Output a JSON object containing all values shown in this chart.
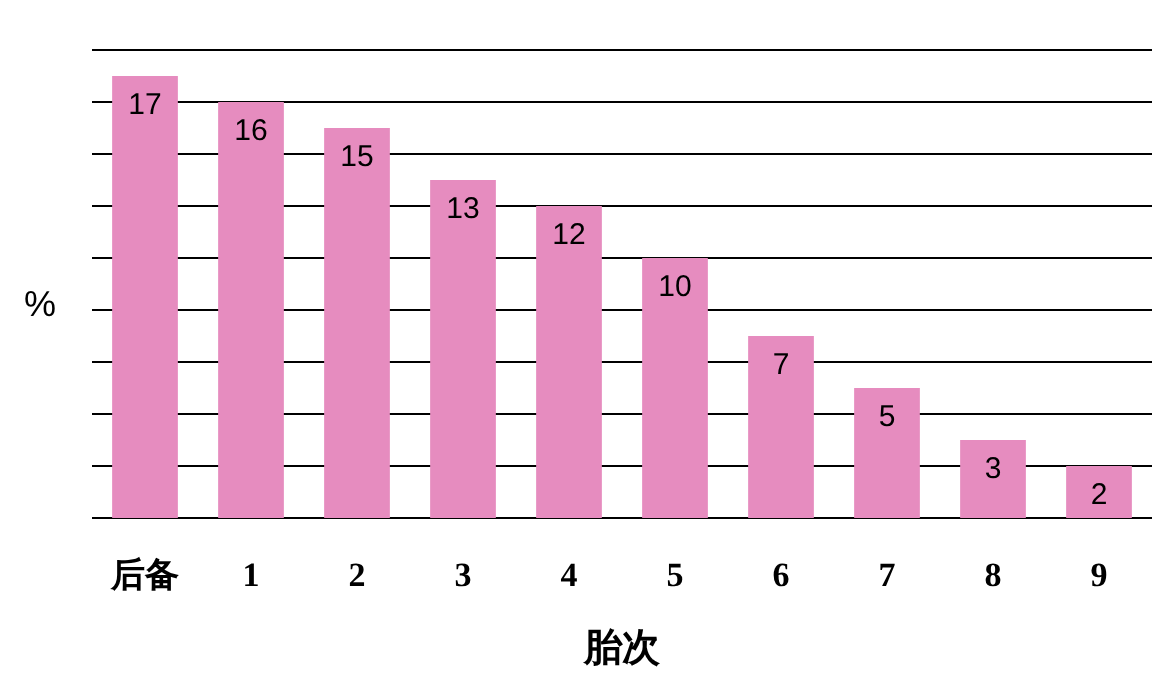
{
  "chart_data": {
    "type": "bar",
    "xlabel": "胎次",
    "ylabel": "%",
    "categories": [
      "后备",
      "1",
      "2",
      "3",
      "4",
      "5",
      "6",
      "7",
      "8",
      "9"
    ],
    "values": [
      17,
      16,
      15,
      13,
      12,
      10,
      7,
      5,
      3,
      2
    ],
    "color": "#e68cbf",
    "ylim": [
      0,
      18
    ],
    "yticks": [
      {
        "value": 0,
        "label": null
      },
      {
        "value": 2,
        "label": null
      },
      {
        "value": 4,
        "label": null
      },
      {
        "value": 6,
        "label": null
      },
      {
        "value": 8,
        "label": null
      },
      {
        "value": 10,
        "label": null
      },
      {
        "value": 12,
        "label": null
      },
      {
        "value": 14,
        "label": null
      },
      {
        "value": 16,
        "label": null
      },
      {
        "value": 18,
        "label": null
      }
    ],
    "grid": "y",
    "data_labels": true
  }
}
